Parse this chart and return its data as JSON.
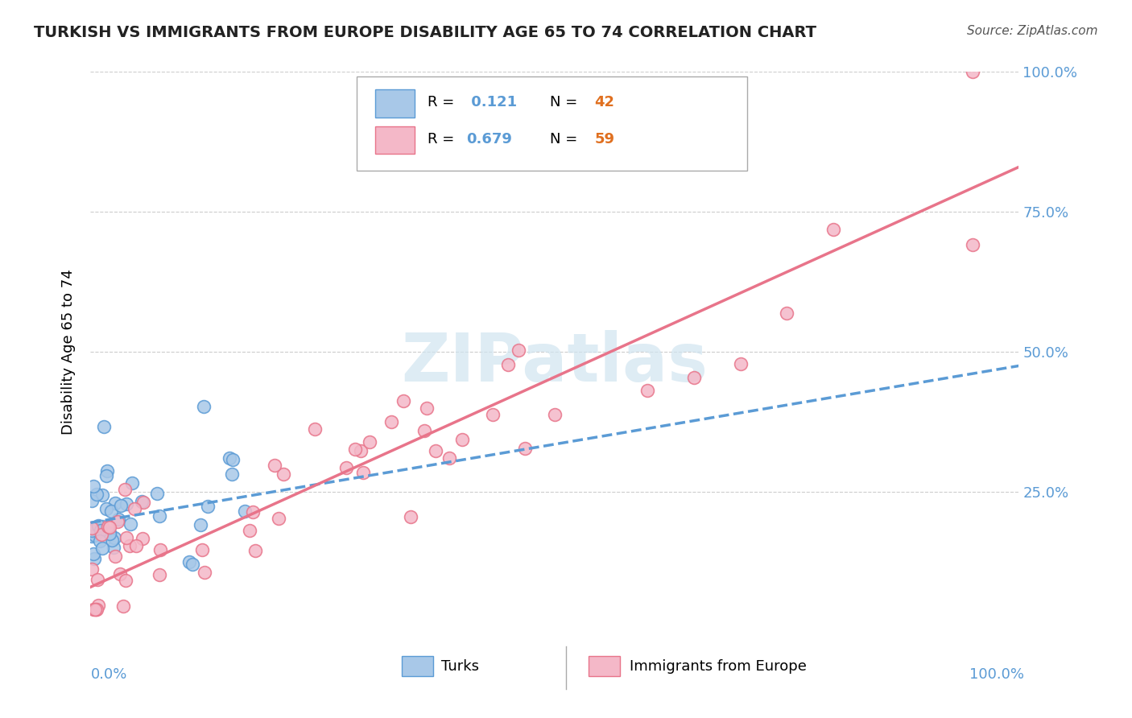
{
  "title": "TURKISH VS IMMIGRANTS FROM EUROPE DISABILITY AGE 65 TO 74 CORRELATION CHART",
  "source": "Source: ZipAtlas.com",
  "ylabel": "Disability Age 65 to 74",
  "turks_color": "#a8c8e8",
  "turks_edge": "#5b9bd5",
  "europe_color": "#f4b8c8",
  "europe_edge": "#e8748a",
  "turk_line_color": "#5b9bd5",
  "europe_line_color": "#e8748a",
  "watermark_color": "#d0e4f0",
  "r_turks": 0.121,
  "n_turks": 42,
  "r_europe": 0.679,
  "n_europe": 59,
  "turk_slope": 0.28,
  "turk_intercept": 0.195,
  "europe_slope": 0.75,
  "europe_intercept": 0.08,
  "right_tick_color": "#5b9bd5",
  "bottom_tick_color": "#5b9bd5"
}
